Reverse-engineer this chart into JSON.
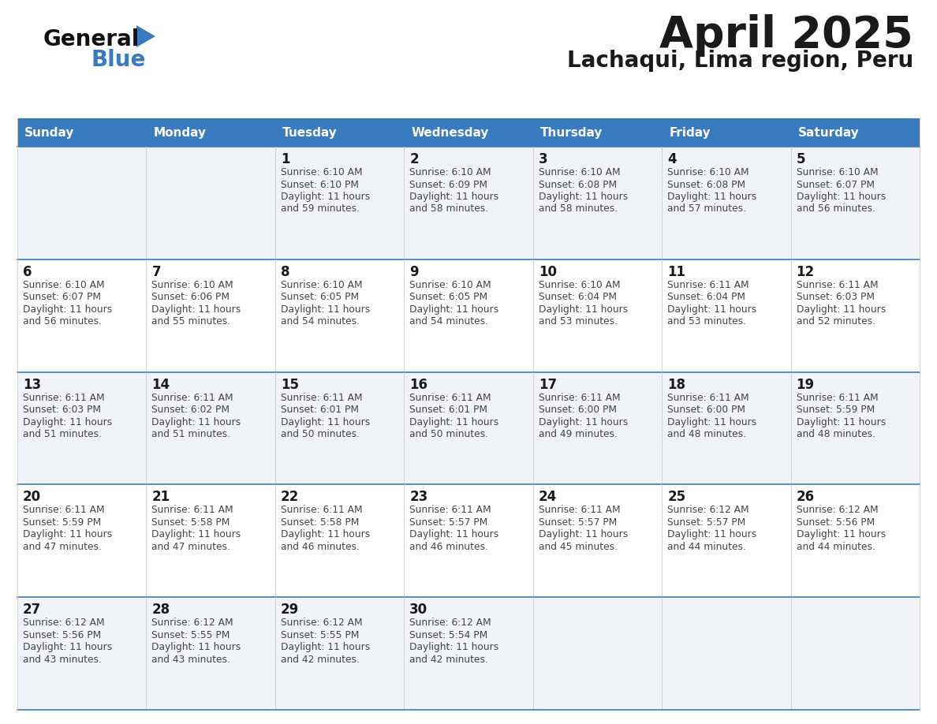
{
  "title": "April 2025",
  "subtitle": "Lachaqui, Lima region, Peru",
  "header_bg": "#3a7bbf",
  "header_text": "#ffffff",
  "row_bg_even": "#f0f4f8",
  "row_bg_odd": "#ffffff",
  "border_color": "#3a7bbf",
  "cell_border_color": "#cccccc",
  "day_headers": [
    "Sunday",
    "Monday",
    "Tuesday",
    "Wednesday",
    "Thursday",
    "Friday",
    "Saturday"
  ],
  "title_color": "#1a1a1a",
  "subtitle_color": "#1a1a1a",
  "cell_text_color": "#444444",
  "day_num_color": "#1a1a1a",
  "logo_general_color": "#111111",
  "logo_blue_color": "#3a7bbf",
  "logo_triangle_color": "#3a7bbf",
  "calendar": [
    [
      null,
      null,
      {
        "day": 1,
        "sunrise": "6:10 AM",
        "sunset": "6:10 PM",
        "daylight": "11 hours and 59 minutes"
      },
      {
        "day": 2,
        "sunrise": "6:10 AM",
        "sunset": "6:09 PM",
        "daylight": "11 hours and 58 minutes"
      },
      {
        "day": 3,
        "sunrise": "6:10 AM",
        "sunset": "6:08 PM",
        "daylight": "11 hours and 58 minutes"
      },
      {
        "day": 4,
        "sunrise": "6:10 AM",
        "sunset": "6:08 PM",
        "daylight": "11 hours and 57 minutes"
      },
      {
        "day": 5,
        "sunrise": "6:10 AM",
        "sunset": "6:07 PM",
        "daylight": "11 hours and 56 minutes"
      }
    ],
    [
      {
        "day": 6,
        "sunrise": "6:10 AM",
        "sunset": "6:07 PM",
        "daylight": "11 hours and 56 minutes"
      },
      {
        "day": 7,
        "sunrise": "6:10 AM",
        "sunset": "6:06 PM",
        "daylight": "11 hours and 55 minutes"
      },
      {
        "day": 8,
        "sunrise": "6:10 AM",
        "sunset": "6:05 PM",
        "daylight": "11 hours and 54 minutes"
      },
      {
        "day": 9,
        "sunrise": "6:10 AM",
        "sunset": "6:05 PM",
        "daylight": "11 hours and 54 minutes"
      },
      {
        "day": 10,
        "sunrise": "6:10 AM",
        "sunset": "6:04 PM",
        "daylight": "11 hours and 53 minutes"
      },
      {
        "day": 11,
        "sunrise": "6:11 AM",
        "sunset": "6:04 PM",
        "daylight": "11 hours and 53 minutes"
      },
      {
        "day": 12,
        "sunrise": "6:11 AM",
        "sunset": "6:03 PM",
        "daylight": "11 hours and 52 minutes"
      }
    ],
    [
      {
        "day": 13,
        "sunrise": "6:11 AM",
        "sunset": "6:03 PM",
        "daylight": "11 hours and 51 minutes"
      },
      {
        "day": 14,
        "sunrise": "6:11 AM",
        "sunset": "6:02 PM",
        "daylight": "11 hours and 51 minutes"
      },
      {
        "day": 15,
        "sunrise": "6:11 AM",
        "sunset": "6:01 PM",
        "daylight": "11 hours and 50 minutes"
      },
      {
        "day": 16,
        "sunrise": "6:11 AM",
        "sunset": "6:01 PM",
        "daylight": "11 hours and 50 minutes"
      },
      {
        "day": 17,
        "sunrise": "6:11 AM",
        "sunset": "6:00 PM",
        "daylight": "11 hours and 49 minutes"
      },
      {
        "day": 18,
        "sunrise": "6:11 AM",
        "sunset": "6:00 PM",
        "daylight": "11 hours and 48 minutes"
      },
      {
        "day": 19,
        "sunrise": "6:11 AM",
        "sunset": "5:59 PM",
        "daylight": "11 hours and 48 minutes"
      }
    ],
    [
      {
        "day": 20,
        "sunrise": "6:11 AM",
        "sunset": "5:59 PM",
        "daylight": "11 hours and 47 minutes"
      },
      {
        "day": 21,
        "sunrise": "6:11 AM",
        "sunset": "5:58 PM",
        "daylight": "11 hours and 47 minutes"
      },
      {
        "day": 22,
        "sunrise": "6:11 AM",
        "sunset": "5:58 PM",
        "daylight": "11 hours and 46 minutes"
      },
      {
        "day": 23,
        "sunrise": "6:11 AM",
        "sunset": "5:57 PM",
        "daylight": "11 hours and 46 minutes"
      },
      {
        "day": 24,
        "sunrise": "6:11 AM",
        "sunset": "5:57 PM",
        "daylight": "11 hours and 45 minutes"
      },
      {
        "day": 25,
        "sunrise": "6:12 AM",
        "sunset": "5:57 PM",
        "daylight": "11 hours and 44 minutes"
      },
      {
        "day": 26,
        "sunrise": "6:12 AM",
        "sunset": "5:56 PM",
        "daylight": "11 hours and 44 minutes"
      }
    ],
    [
      {
        "day": 27,
        "sunrise": "6:12 AM",
        "sunset": "5:56 PM",
        "daylight": "11 hours and 43 minutes"
      },
      {
        "day": 28,
        "sunrise": "6:12 AM",
        "sunset": "5:55 PM",
        "daylight": "11 hours and 43 minutes"
      },
      {
        "day": 29,
        "sunrise": "6:12 AM",
        "sunset": "5:55 PM",
        "daylight": "11 hours and 42 minutes"
      },
      {
        "day": 30,
        "sunrise": "6:12 AM",
        "sunset": "5:54 PM",
        "daylight": "11 hours and 42 minutes"
      },
      null,
      null,
      null
    ]
  ]
}
